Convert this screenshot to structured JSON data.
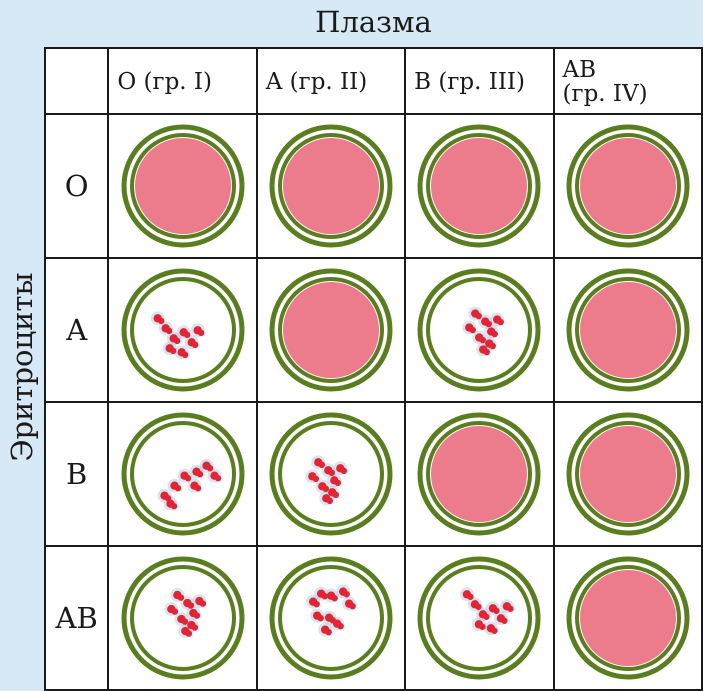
{
  "plasma_label": "Плазма",
  "erythrocytes_label": "Эритроциты",
  "columns": [
    {
      "line1": "O (гр. I)",
      "line2": ""
    },
    {
      "line1": "A (гр. II)",
      "line2": ""
    },
    {
      "line1": "B (гр. III)",
      "line2": ""
    },
    {
      "line1": "AB",
      "line2": "(гр. IV)"
    }
  ],
  "rows": [
    {
      "label": "O",
      "results": [
        "none",
        "none",
        "none",
        "none"
      ]
    },
    {
      "label": "A",
      "results": [
        "agglutination",
        "none",
        "agglutination",
        "none"
      ]
    },
    {
      "label": "B",
      "results": [
        "agglutination",
        "agglutination",
        "none",
        "none"
      ]
    },
    {
      "label": "AB",
      "results": [
        "agglutination",
        "agglutination",
        "agglutination",
        "none"
      ]
    }
  ],
  "colors": {
    "ring": "#5a7d1f",
    "homogeneous": "#ec7c8c",
    "clump": "#e32434",
    "clump_halo": "#a9c4dd"
  }
}
